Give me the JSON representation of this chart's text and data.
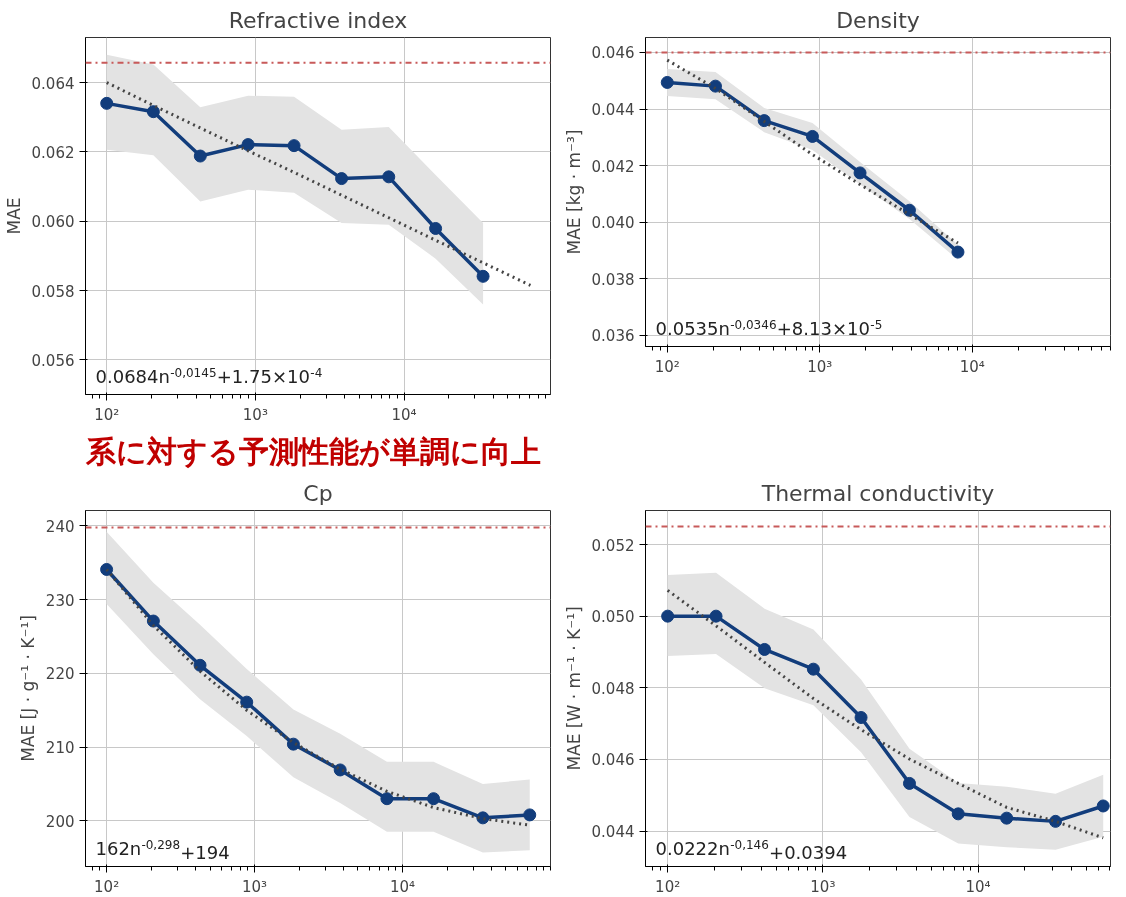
{
  "chart_data": [
    {
      "type": "line",
      "title": "Refractive index",
      "ylabel": "MAE",
      "log": "x",
      "grid": true,
      "xlim": [
        72,
        96600
      ],
      "xticks": [
        {
          "value": 100,
          "label": "10²"
        },
        {
          "value": 1000,
          "label": "10³"
        },
        {
          "value": 10000,
          "label": "10⁴"
        }
      ],
      "ylim": [
        0.055,
        0.0653
      ],
      "yticks": [
        {
          "value": 0.056,
          "label": "0.056"
        },
        {
          "value": 0.058,
          "label": "0.058"
        },
        {
          "value": 0.06,
          "label": "0.060"
        },
        {
          "value": 0.062,
          "label": "0.062"
        },
        {
          "value": 0.064,
          "label": "0.064"
        }
      ],
      "x": [
        100,
        206,
        426,
        893,
        1820,
        3800,
        7890,
        16300,
        34000,
        70800
      ],
      "series": [
        {
          "color": "#123d7c",
          "marker": "circle",
          "values": [
            0.0634,
            0.06316,
            0.06188,
            0.06221,
            0.06218,
            0.06123,
            0.06128,
            0.05979,
            0.05841,
            null
          ],
          "lower": [
            0.06206,
            0.0619,
            0.06057,
            0.06091,
            0.06082,
            0.05995,
            0.0599,
            0.05892,
            0.0576,
            null
          ],
          "upper": [
            0.0648,
            0.06452,
            0.06329,
            0.06362,
            0.06359,
            0.06264,
            0.06272,
            0.06133,
            0.05995,
            null
          ]
        },
        {
          "color": "#444444",
          "marker": "none",
          "line_style": "dotted",
          "values": [
            0.064,
            0.06334,
            0.06269,
            0.06203,
            0.06141,
            0.06075,
            0.0601,
            0.05945,
            0.0588,
            0.05815
          ]
        }
      ],
      "ref_lines": [
        {
          "axis": "y",
          "value": 0.06457,
          "color": "#c85a5a",
          "line_style": "dashdot"
        }
      ],
      "annotations": [
        "0.0684n$^{-0,0145}$+1.75×10$^{-4}$",
        "系に対する予測性能が単調に向上"
      ]
    },
    {
      "type": "line",
      "title": "Density",
      "ylabel": "MAE [kg · m⁻³]",
      "log": "x",
      "grid": true,
      "xlim": [
        72,
        80500
      ],
      "xticks": [
        {
          "value": 100,
          "label": "10²"
        },
        {
          "value": 1000,
          "label": "10³"
        },
        {
          "value": 10000,
          "label": "10⁴"
        }
      ],
      "ylim": [
        0.0356,
        0.04653
      ],
      "yticks": [
        {
          "value": 0.036,
          "label": "0.036"
        },
        {
          "value": 0.038,
          "label": "0.038"
        },
        {
          "value": 0.04,
          "label": "0.040"
        },
        {
          "value": 0.042,
          "label": "0.042"
        },
        {
          "value": 0.044,
          "label": "0.044"
        },
        {
          "value": 0.046,
          "label": "0.046"
        }
      ],
      "x": [
        100,
        207,
        432,
        895,
        1836,
        3870,
        8050
      ],
      "series": [
        {
          "color": "#123d7c",
          "marker": "circle",
          "values": [
            0.04494,
            0.04481,
            0.04359,
            0.04303,
            0.04174,
            0.04042,
            0.03894
          ],
          "lower": [
            0.04446,
            0.04435,
            0.04318,
            0.04255,
            0.04133,
            0.04011,
            0.03867
          ],
          "upper": [
            0.04542,
            0.04531,
            0.04404,
            0.04351,
            0.04213,
            0.04074,
            0.0392
          ]
        },
        {
          "color": "#444444",
          "marker": "none",
          "line_style": "dotted",
          "values": [
            0.04573,
            0.04473,
            0.04356,
            0.04239,
            0.04133,
            0.04027,
            0.03926
          ]
        }
      ],
      "ref_lines": [
        {
          "axis": "y",
          "value": 0.046,
          "color": "#c85a5a",
          "line_style": "dashdot"
        }
      ],
      "annotations": [
        "0.0535n$^{-0,0346}$+8.13×10$^{-5}$"
      ]
    },
    {
      "type": "line",
      "title": "Cp",
      "ylabel": "MAE [J · g⁻¹ · K⁻¹]",
      "log": "x",
      "grid": true,
      "xlim": [
        72,
        100000
      ],
      "xticks": [
        {
          "value": 100,
          "label": "10²"
        },
        {
          "value": 1000,
          "label": "10³"
        },
        {
          "value": 10000,
          "label": "10⁴"
        }
      ],
      "ylim": [
        193.8,
        242.1
      ],
      "yticks": [
        200,
        210,
        220,
        230,
        240
      ],
      "x": [
        100,
        207,
        428,
        885,
        1830,
        3790,
        7840,
        16200,
        34900,
        72400
      ],
      "series": [
        {
          "color": "#123d7c",
          "marker": "circle",
          "values": [
            234.1,
            227.1,
            221.1,
            216.1,
            210.4,
            206.9,
            203.0,
            203.0,
            200.4,
            200.8
          ],
          "lower": [
            229.4,
            222.6,
            216.5,
            211.5,
            205.9,
            202.4,
            198.5,
            198.5,
            195.7,
            196.0
          ],
          "upper": [
            239.2,
            232.3,
            226.6,
            220.6,
            215.1,
            211.8,
            208.0,
            208.0,
            205.0,
            205.6
          ]
        },
        {
          "color": "#444444",
          "marker": "none",
          "line_style": "dotted",
          "values": [
            234.1,
            226.5,
            220.3,
            215.0,
            210.6,
            207.0,
            204.0,
            201.8,
            200.3,
            199.4
          ]
        }
      ],
      "ref_lines": [
        {
          "axis": "y",
          "value": 239.8,
          "color": "#c85a5a",
          "line_style": "dashdot"
        }
      ],
      "annotations": [
        "162n$^{-0,298}$+194"
      ]
    },
    {
      "type": "line",
      "title": "Thermal conductivity",
      "ylabel": "MAE [W · m⁻¹ · K⁻¹]",
      "log": "x",
      "grid": true,
      "xlim": [
        72,
        71300
      ],
      "xticks": [
        {
          "value": 100,
          "label": "10²"
        },
        {
          "value": 1000,
          "label": "10³"
        },
        {
          "value": 10000,
          "label": "10⁴"
        }
      ],
      "ylim": [
        0.04301,
        0.05295
      ],
      "yticks": [
        {
          "value": 0.044,
          "label": "0.044"
        },
        {
          "value": 0.046,
          "label": "0.046"
        },
        {
          "value": 0.048,
          "label": "0.048"
        },
        {
          "value": 0.05,
          "label": "0.050"
        },
        {
          "value": 0.052,
          "label": "0.052"
        }
      ],
      "x": [
        100,
        205,
        421,
        869,
        1762,
        3614,
        7447,
        15280,
        31550,
        64000
      ],
      "series": [
        {
          "color": "#123d7c",
          "marker": "circle",
          "values": [
            0.05,
            0.05,
            0.04907,
            0.04852,
            0.04717,
            0.04533,
            0.04448,
            0.04436,
            0.04427,
            0.0447
          ],
          "lower": [
            0.04889,
            0.04894,
            0.04799,
            0.04751,
            0.0462,
            0.04439,
            0.04365,
            0.04355,
            0.04348,
            0.04384
          ],
          "upper": [
            0.05115,
            0.05121,
            0.05021,
            0.04963,
            0.04823,
            0.0463,
            0.04534,
            0.04524,
            0.04504,
            0.04557
          ]
        },
        {
          "color": "#444444",
          "marker": "none",
          "line_style": "dotted",
          "values": [
            0.05072,
            0.04973,
            0.04871,
            0.0477,
            0.04683,
            0.04601,
            0.04533,
            0.04466,
            0.04427,
            0.04381
          ]
        }
      ],
      "ref_lines": [
        {
          "axis": "y",
          "value": 0.0525,
          "color": "#c85a5a",
          "line_style": "dashdot"
        }
      ],
      "annotations": [
        "0.0222n$^{-0,146}$+0.0394"
      ]
    }
  ]
}
